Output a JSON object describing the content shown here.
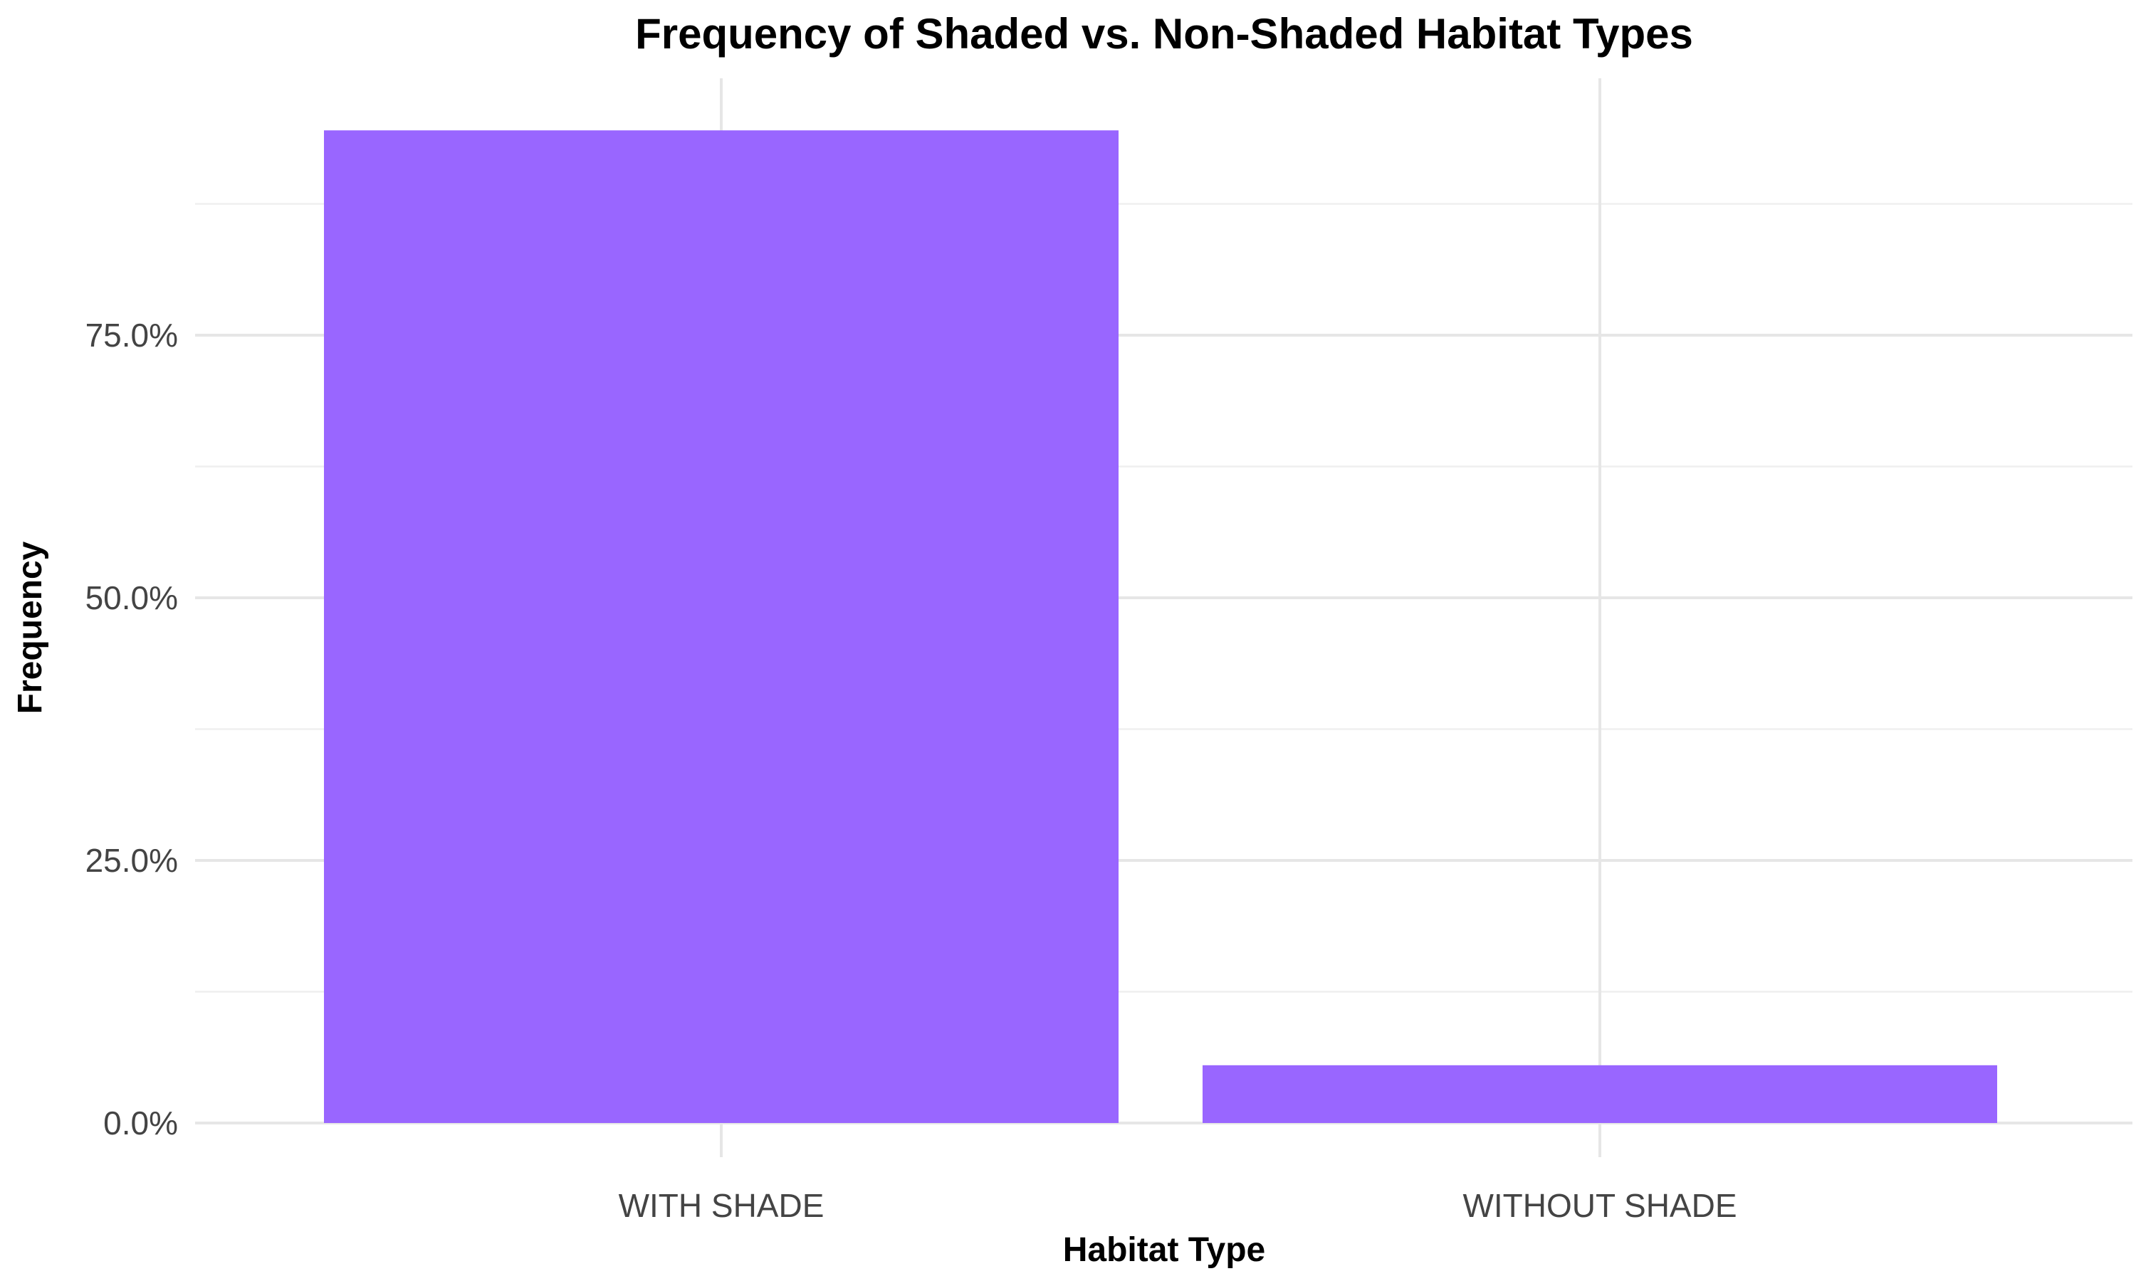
{
  "chart_data": {
    "type": "bar",
    "title": "Frequency of Shaded vs. Non-Shaded Habitat Types",
    "xlabel": "Habitat Type",
    "ylabel": "Frequency",
    "categories": [
      "WITH SHADE",
      "WITHOUT SHADE"
    ],
    "values": [
      94.5,
      5.5
    ],
    "value_unit": "%",
    "ylim": [
      0,
      100
    ],
    "yticks": [
      0,
      25,
      50,
      75
    ],
    "ytick_labels": [
      "0.0%",
      "25.0%",
      "50.0%",
      "75.0%"
    ],
    "grid": true,
    "legend": "none",
    "bar_color": "#9966ff"
  }
}
